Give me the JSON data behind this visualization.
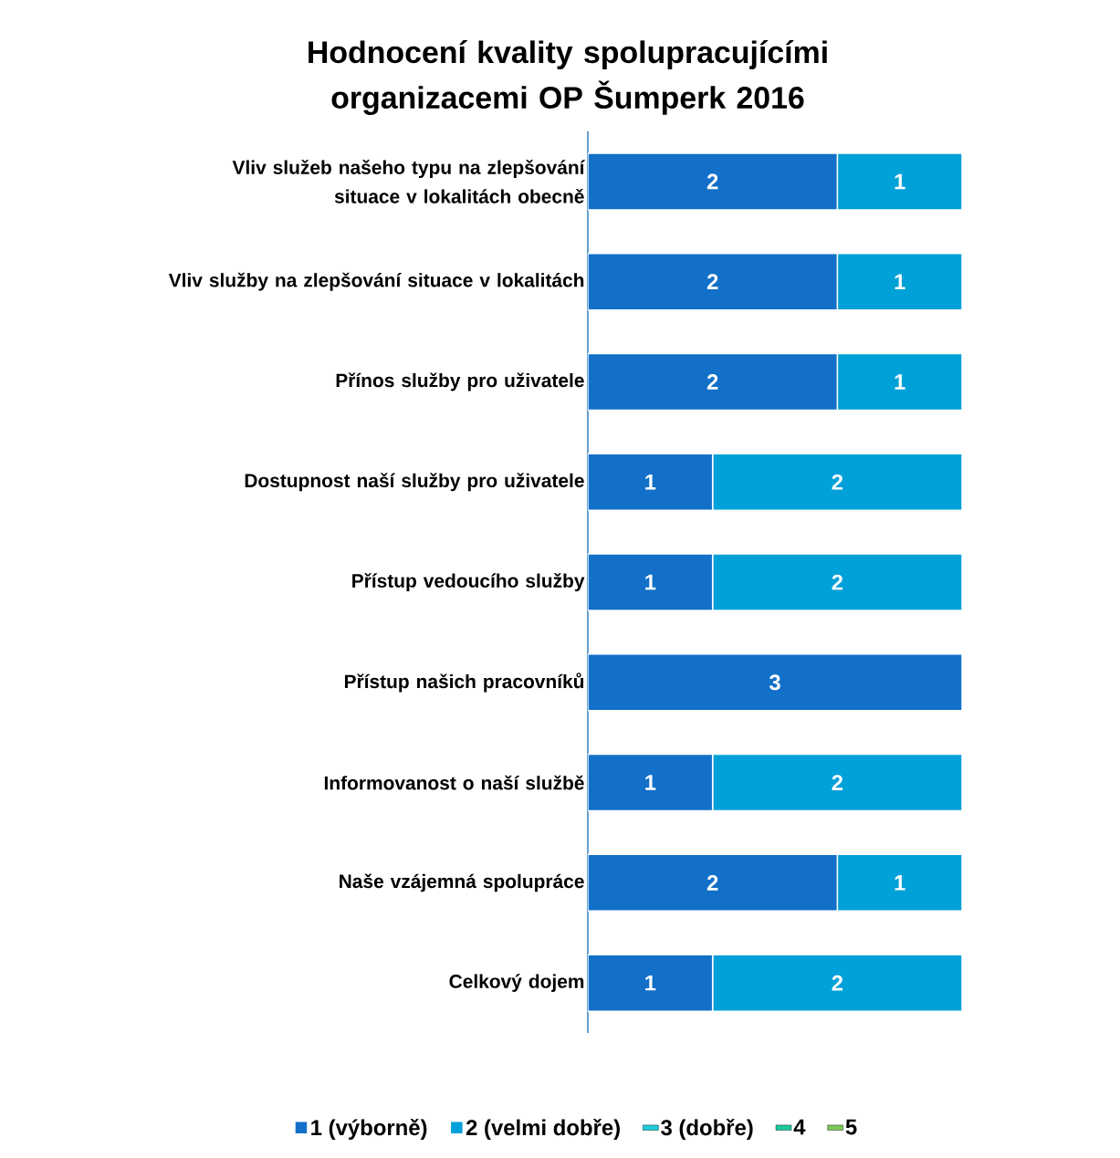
{
  "chart_data": {
    "type": "bar",
    "orientation": "horizontal",
    "stacked": true,
    "title": "Hodnocení kvality spolupracujícími organizacemi OP Šumperk 2016",
    "categories": [
      "Vliv služeb našeho typu na zlepšování situace v lokalitách obecně",
      "Vliv služby na zlepšování situace v lokalitách",
      "Přínos služby pro uživatele",
      "Dostupnost naší služby pro uživatele",
      "Přístup vedoucího služby",
      "Přístup našich pracovníků",
      "Informovanost o naší službě",
      "Naše vzájemná spolupráce",
      "Celkový dojem"
    ],
    "series": [
      {
        "name": "1 (výborně)",
        "color": "#1270c8",
        "values": [
          2,
          2,
          2,
          1,
          1,
          3,
          1,
          2,
          1
        ],
        "value_labels": [
          "2",
          "2",
          "2",
          "1",
          "1",
          "3",
          "1",
          "2",
          "1"
        ]
      },
      {
        "name": "2 (velmi dobře)",
        "color": "#00a0d8",
        "values": [
          1,
          1,
          1,
          2,
          2,
          0,
          2,
          1,
          2
        ],
        "value_labels": [
          "1",
          "1",
          "1",
          "2",
          "2",
          null,
          "2",
          "1",
          "2"
        ]
      },
      {
        "name": "3 (dobře)",
        "color": "#1ecbd8",
        "values": [
          null,
          null,
          null,
          null,
          null,
          null,
          null,
          null,
          null
        ]
      },
      {
        "name": "4",
        "color": "#1ac99c",
        "values": [
          null,
          null,
          null,
          null,
          null,
          null,
          null,
          null,
          null
        ]
      },
      {
        "name": "5",
        "color": "#7ec85a",
        "values": [
          null,
          null,
          null,
          null,
          null,
          null,
          null,
          null,
          null
        ]
      }
    ],
    "legend": "bottom"
  }
}
